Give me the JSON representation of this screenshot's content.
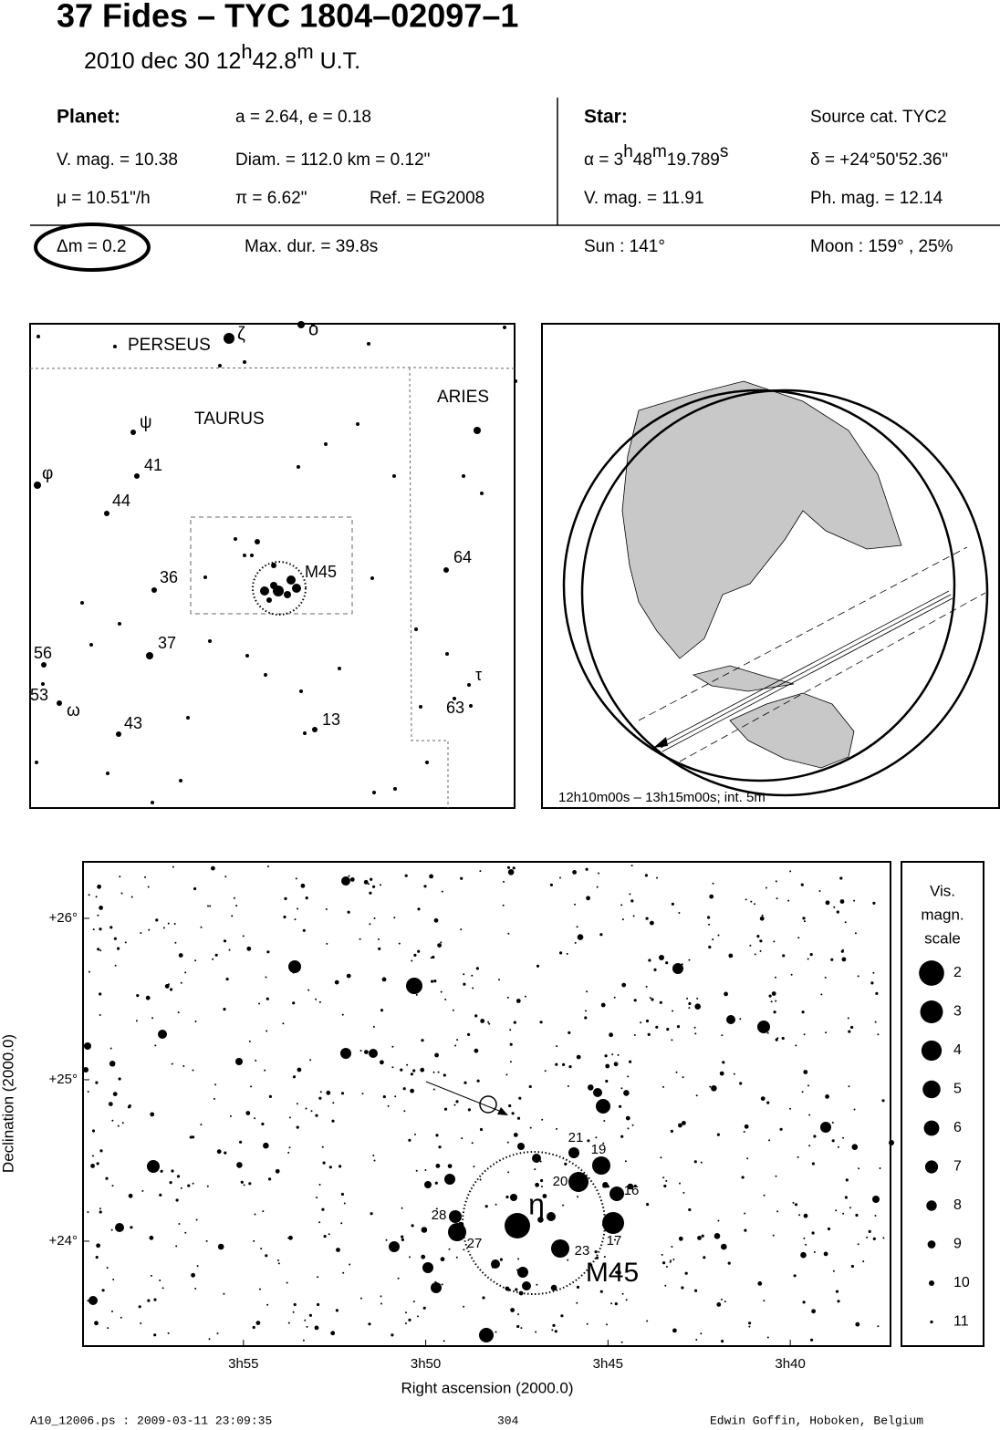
{
  "header": {
    "title": "37 Fides  –  TYC 1804–02097–1",
    "datetime": [
      "2010 dec 30  12",
      "h",
      "42.8",
      "m",
      " U.T."
    ]
  },
  "planet": {
    "label": "Planet:",
    "orbit": "a = 2.64, e = 0.18",
    "vmag": "V. mag. = 10.38",
    "diam": "Diam. = 112.0 km = 0.12\"",
    "motion": "μ =  10.51\"/h",
    "parallax": "π =  6.62\"",
    "ref": "Ref. = EG2008"
  },
  "star": {
    "label": "Star:",
    "source": "Source cat.  TYC2",
    "ra": [
      "α =  3",
      "h",
      "48",
      "m",
      "19.789",
      "s"
    ],
    "dec": "δ = +24°50'52.36\"",
    "vmag": "V. mag. = 11.91",
    "phmag": "Ph. mag. = 12.14"
  },
  "event": {
    "dmag": "Δm = 0.2",
    "maxdur": "Max. dur. = 39.8s",
    "sun": "Sun : 141°",
    "moon": "Moon : 159° , 25%"
  },
  "finder": {
    "labels": [
      "PERSEUS",
      "ζ",
      "ο",
      "TAURUS",
      "ARIES",
      "ψ",
      "41",
      "φ",
      "44",
      "M45",
      "36",
      "64",
      "37",
      "56",
      "τ",
      "53",
      "ω",
      "63",
      "43",
      "13"
    ]
  },
  "globe": {
    "caption": "12h10m00s – 13h15m00s; int.  5m"
  },
  "chart_data": {
    "type": "scatter",
    "xlabel": "Right ascension (2000.0)",
    "ylabel": "Declination (2000.0)",
    "xlim": [
      239.4,
      217.25
    ],
    "xticks": [
      {
        "value": 235,
        "label": "3h55"
      },
      {
        "value": 230,
        "label": "3h50"
      },
      {
        "value": 225,
        "label": "3h45"
      },
      {
        "value": 220,
        "label": "3h40"
      }
    ],
    "ylim": [
      23.35,
      26.35
    ],
    "yticks": [
      {
        "value": 26,
        "label": "+26°"
      },
      {
        "value": 25,
        "label": "+25°"
      },
      {
        "value": 24,
        "label": "+24°"
      }
    ],
    "labels": [
      "21",
      "19",
      "20",
      "16",
      "28",
      "η",
      "27",
      "23",
      "17",
      "M45"
    ],
    "legend": {
      "title": [
        "Vis.",
        "magn.",
        "scale"
      ],
      "magnitudes": [
        2,
        3,
        4,
        5,
        6,
        7,
        8,
        9,
        10,
        11
      ]
    }
  },
  "footer": {
    "file": "A10_12006.ps : 2009-03-11 23:09:35",
    "page": "304",
    "author": "Edwin Goffin, Hoboken, Belgium"
  }
}
